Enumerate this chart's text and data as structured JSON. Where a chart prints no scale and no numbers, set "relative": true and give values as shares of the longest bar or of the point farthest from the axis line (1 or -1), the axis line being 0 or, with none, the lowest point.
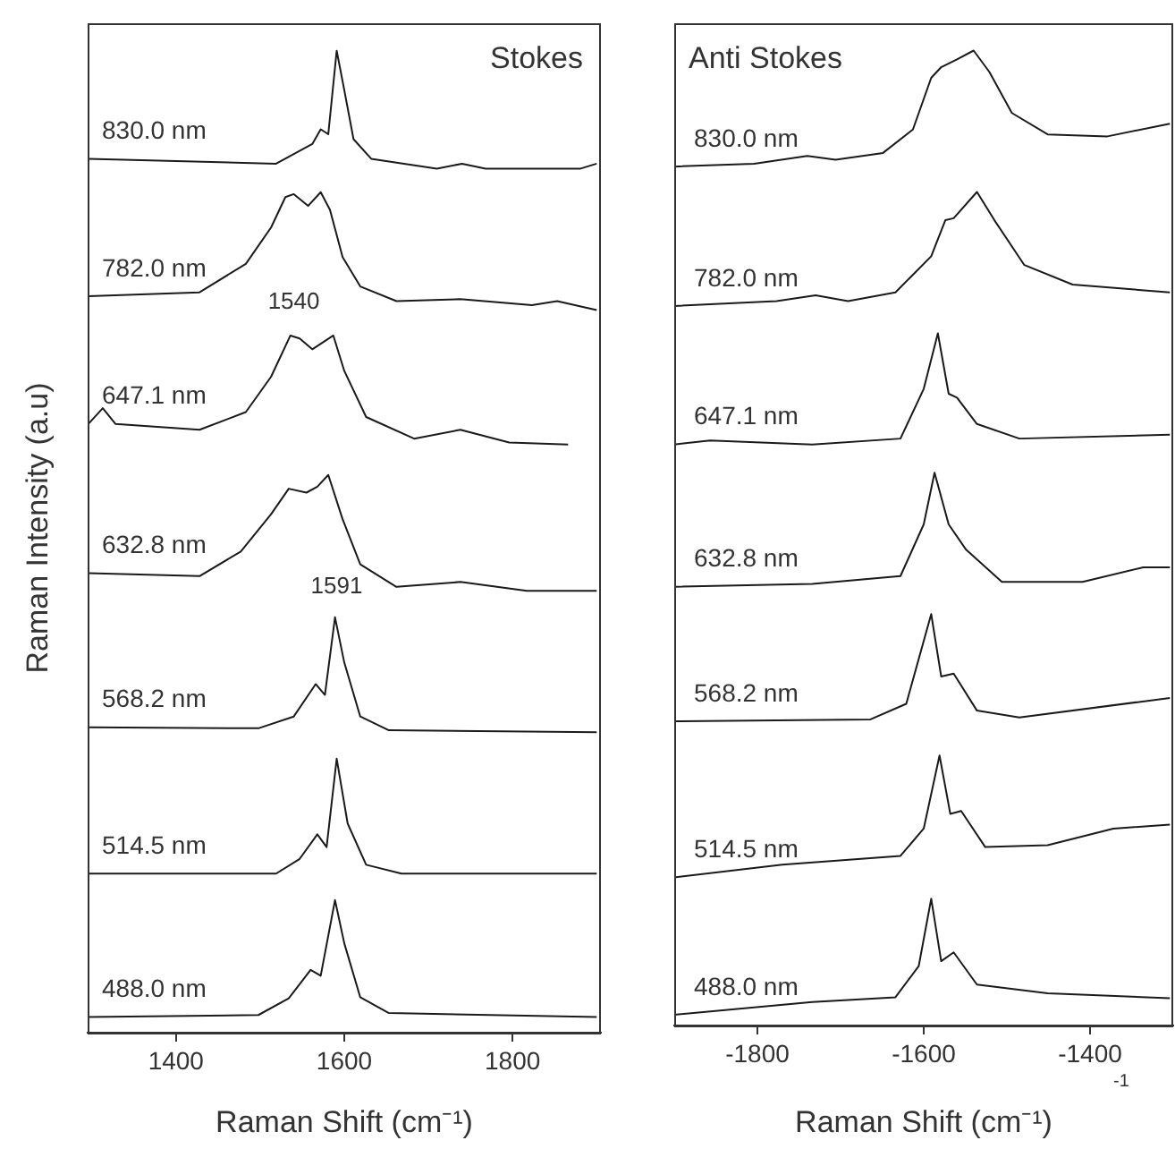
{
  "chart_data": [
    {
      "type": "line",
      "xlabel": "Raman Shift (cm⁻¹)",
      "ylabel": "Raman Intensity (a.u)",
      "relative": true,
      "xlim": [
        1295,
        1905
      ],
      "xticks": [
        1400,
        1600,
        1800
      ],
      "marker": "none",
      "annotations": [
        "Stokes",
        {
          "text": "1540",
          "x": 1540,
          "y": 0.71
        },
        {
          "text": "1591",
          "x": 1591,
          "y": 0.42
        }
      ],
      "series": [
        {
          "name": "830.0 nm",
          "color": "#1a1a1a",
          "x": [
            1296,
            1519,
            1562,
            1572,
            1581,
            1591,
            1600,
            1611,
            1632,
            1710,
            1740,
            1768,
            1881,
            1900
          ],
          "values": [
            0.89,
            0.885,
            0.905,
            0.92,
            0.915,
            1.0,
            0.96,
            0.91,
            0.89,
            0.88,
            0.885,
            0.88,
            0.88,
            0.885
          ]
        },
        {
          "name": "782.0 nm",
          "color": "#1a1a1a",
          "x": [
            1296,
            1428,
            1483,
            1513,
            1530,
            1540,
            1557,
            1572,
            1583,
            1598,
            1619,
            1662,
            1738,
            1823,
            1853,
            1900
          ],
          "values": [
            0.75,
            0.754,
            0.783,
            0.82,
            0.851,
            0.854,
            0.842,
            0.856,
            0.838,
            0.79,
            0.76,
            0.745,
            0.747,
            0.741,
            0.745,
            0.736
          ]
        },
        {
          "name": "647.1 nm",
          "color": "#1a1a1a",
          "x": [
            1296,
            1313,
            1328,
            1428,
            1483,
            1513,
            1536,
            1547,
            1562,
            1587,
            1600,
            1626,
            1683,
            1738,
            1796,
            1866
          ],
          "values": [
            0.62,
            0.636,
            0.62,
            0.614,
            0.632,
            0.668,
            0.71,
            0.707,
            0.696,
            0.71,
            0.674,
            0.627,
            0.605,
            0.614,
            0.601,
            0.599
          ]
        },
        {
          "name": "632.8 nm",
          "color": "#1a1a1a",
          "x": [
            1296,
            1428,
            1477,
            1513,
            1534,
            1555,
            1568,
            1581,
            1598,
            1619,
            1662,
            1738,
            1817,
            1900
          ],
          "values": [
            0.468,
            0.465,
            0.49,
            0.528,
            0.554,
            0.55,
            0.556,
            0.568,
            0.523,
            0.477,
            0.454,
            0.459,
            0.45,
            0.45
          ]
        },
        {
          "name": "568.2 nm",
          "color": "#1a1a1a",
          "x": [
            1296,
            1498,
            1540,
            1566,
            1577,
            1589,
            1600,
            1619,
            1653,
            1900
          ],
          "values": [
            0.311,
            0.31,
            0.322,
            0.355,
            0.344,
            0.423,
            0.377,
            0.322,
            0.308,
            0.306
          ]
        },
        {
          "name": "514.5 nm",
          "color": "#1a1a1a",
          "x": [
            1296,
            1519,
            1547,
            1568,
            1579,
            1591,
            1604,
            1626,
            1668,
            1900
          ],
          "values": [
            0.162,
            0.162,
            0.177,
            0.202,
            0.189,
            0.279,
            0.213,
            0.171,
            0.162,
            0.162
          ]
        },
        {
          "name": "488.0 nm",
          "color": "#1a1a1a",
          "x": [
            1296,
            1498,
            1534,
            1560,
            1572,
            1589,
            1600,
            1619,
            1653,
            1900
          ],
          "values": [
            0.016,
            0.018,
            0.035,
            0.064,
            0.058,
            0.135,
            0.091,
            0.036,
            0.02,
            0.016
          ]
        }
      ]
    },
    {
      "type": "line",
      "xlabel": "Raman Shift (cm⁻¹)",
      "relative": true,
      "xlim": [
        -1900,
        -1300
      ],
      "xticks": [
        -1800,
        -1600,
        -1400
      ],
      "marker": "none",
      "annotations": [
        "Anti Stokes",
        "-1"
      ],
      "series": [
        {
          "name": "830.0 nm",
          "color": "#1a1a1a",
          "x": [
            -1900,
            -1804,
            -1740,
            -1706,
            -1649,
            -1613,
            -1591,
            -1579,
            -1560,
            -1540,
            -1521,
            -1494,
            -1451,
            -1379,
            -1304
          ],
          "values": [
            0.881,
            0.884,
            0.892,
            0.888,
            0.895,
            0.919,
            0.972,
            0.983,
            0.991,
            1.0,
            0.978,
            0.936,
            0.914,
            0.912,
            0.925
          ]
        },
        {
          "name": "782.0 nm",
          "color": "#1a1a1a",
          "x": [
            -1900,
            -1777,
            -1730,
            -1691,
            -1634,
            -1591,
            -1574,
            -1564,
            -1536,
            -1515,
            -1479,
            -1421,
            -1304
          ],
          "values": [
            0.738,
            0.743,
            0.749,
            0.743,
            0.752,
            0.789,
            0.826,
            0.828,
            0.855,
            0.826,
            0.78,
            0.76,
            0.752
          ]
        },
        {
          "name": "647.1 nm",
          "color": "#1a1a1a",
          "x": [
            -1900,
            -1857,
            -1734,
            -1628,
            -1600,
            -1583,
            -1570,
            -1560,
            -1536,
            -1485,
            -1304
          ],
          "values": [
            0.596,
            0.6,
            0.596,
            0.602,
            0.653,
            0.71,
            0.648,
            0.644,
            0.617,
            0.602,
            0.606
          ]
        },
        {
          "name": "632.8 nm",
          "color": "#1a1a1a",
          "x": [
            -1900,
            -1734,
            -1628,
            -1600,
            -1587,
            -1570,
            -1549,
            -1506,
            -1409,
            -1336,
            -1304
          ],
          "values": [
            0.45,
            0.453,
            0.461,
            0.514,
            0.567,
            0.514,
            0.488,
            0.455,
            0.455,
            0.47,
            0.47
          ]
        },
        {
          "name": "568.2 nm",
          "color": "#1a1a1a",
          "x": [
            -1900,
            -1664,
            -1621,
            -1591,
            -1579,
            -1564,
            -1536,
            -1485,
            -1304
          ],
          "values": [
            0.312,
            0.314,
            0.33,
            0.422,
            0.358,
            0.361,
            0.323,
            0.316,
            0.336
          ]
        },
        {
          "name": "514.5 nm",
          "color": "#1a1a1a",
          "x": [
            -1900,
            -1770,
            -1628,
            -1600,
            -1581,
            -1568,
            -1555,
            -1526,
            -1451,
            -1372,
            -1304
          ],
          "values": [
            0.152,
            0.165,
            0.174,
            0.202,
            0.277,
            0.217,
            0.22,
            0.183,
            0.185,
            0.202,
            0.206
          ]
        },
        {
          "name": "488.0 nm",
          "color": "#1a1a1a",
          "x": [
            -1900,
            -1734,
            -1634,
            -1606,
            -1591,
            -1579,
            -1564,
            -1536,
            -1451,
            -1304
          ],
          "values": [
            0.011,
            0.024,
            0.029,
            0.061,
            0.13,
            0.066,
            0.075,
            0.042,
            0.033,
            0.028
          ]
        }
      ]
    }
  ]
}
